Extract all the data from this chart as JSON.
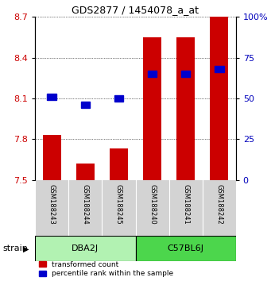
{
  "title": "GDS2877 / 1454078_a_at",
  "samples": [
    "GSM188243",
    "GSM188244",
    "GSM188245",
    "GSM188240",
    "GSM188241",
    "GSM188242"
  ],
  "groups": [
    {
      "name": "DBA2J",
      "color": "#b2f2b2",
      "samples": [
        0,
        1,
        2
      ]
    },
    {
      "name": "C57BL6J",
      "color": "#4cd64c",
      "samples": [
        3,
        4,
        5
      ]
    }
  ],
  "transformed_counts": [
    7.83,
    7.62,
    7.73,
    8.55,
    8.55,
    8.7
  ],
  "percentile_ranks": [
    51,
    46,
    50,
    65,
    65,
    68
  ],
  "y_min": 7.5,
  "y_max": 8.7,
  "y_ticks": [
    7.5,
    7.8,
    8.1,
    8.4,
    8.7
  ],
  "y_ticks_right": [
    0,
    25,
    50,
    75,
    100
  ],
  "bar_color": "#CC0000",
  "dot_color": "#0000CC",
  "bar_width": 0.55,
  "background_color": "#ffffff",
  "tick_label_color_left": "#CC0000",
  "tick_label_color_right": "#0000BB",
  "strain_label": "strain",
  "legend_items": [
    {
      "color": "#CC0000",
      "label": "transformed count"
    },
    {
      "color": "#0000CC",
      "label": "percentile rank within the sample"
    }
  ]
}
